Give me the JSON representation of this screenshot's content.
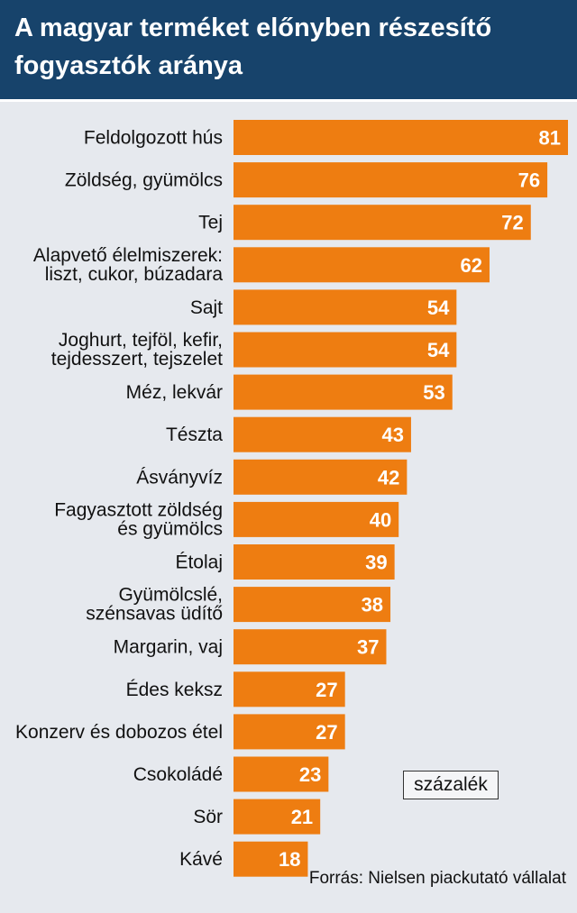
{
  "header": {
    "title_line1": "A magyar terméket előnyben részesítő",
    "title_line2": "fogyasztók aránya"
  },
  "unit_label": "százalék",
  "source": "Forrás: Nielsen piackutató vállalat",
  "colors": {
    "header_bg": "#17436b",
    "bar": "#ee7d11",
    "background": "#e6e9ee",
    "value_text": "#ffffff"
  },
  "chart_data": {
    "type": "bar",
    "orientation": "horizontal",
    "title": "A magyar terméket előnyben részesítő fogyasztók aránya",
    "unit": "százalék",
    "categories": [
      "Feldolgozott hús",
      "Zöldség, gyümölcs",
      "Tej",
      "Alapvető élelmiszerek:\nliszt, cukor, búzadara",
      "Sajt",
      "Joghurt, tejföl, kefir,\ntejdesszert, tejszelet",
      "Méz, lekvár",
      "Tészta",
      "Ásványvíz",
      "Fagyasztott zöldség\nés gyümölcs",
      "Étolaj",
      "Gyümölcslé,\nszénsavas üdítő",
      "Margarin, vaj",
      "Édes keksz",
      "Konzerv és dobozos étel",
      "Csokoládé",
      "Sör",
      "Kávé"
    ],
    "values": [
      81,
      76,
      72,
      62,
      54,
      54,
      53,
      43,
      42,
      40,
      39,
      38,
      37,
      27,
      27,
      23,
      21,
      18
    ],
    "xlim": [
      0,
      81
    ],
    "grid": false,
    "data_labels": true
  }
}
